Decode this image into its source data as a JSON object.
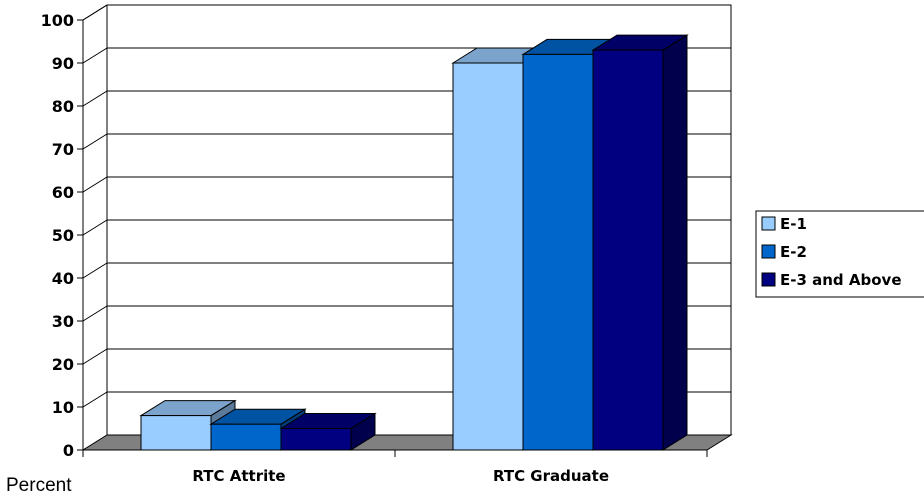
{
  "chart_data": {
    "type": "bar",
    "title": "",
    "xlabel": "",
    "ylabel": "Percent",
    "ylim": [
      0,
      100
    ],
    "yticks": [
      0,
      10,
      20,
      30,
      40,
      50,
      60,
      70,
      80,
      90,
      100
    ],
    "categories": [
      "RTC Attrite",
      "RTC Graduate"
    ],
    "series": [
      {
        "name": "E-1",
        "values": [
          8,
          90
        ]
      },
      {
        "name": "E-2",
        "values": [
          6,
          92
        ]
      },
      {
        "name": "E-3 and Above",
        "values": [
          5,
          93
        ]
      }
    ],
    "grid": true,
    "legend": "right",
    "colors": {
      "E-1": {
        "front": "#99CCFF",
        "top": "#7BA3CC",
        "side": "#5C7A99"
      },
      "E-2": {
        "front": "#0066CC",
        "top": "#0052A3",
        "side": "#003D7A"
      },
      "E-3 and Above": {
        "front": "#000080",
        "top": "#000066",
        "side": "#00004D"
      },
      "floor": "#808080"
    }
  }
}
